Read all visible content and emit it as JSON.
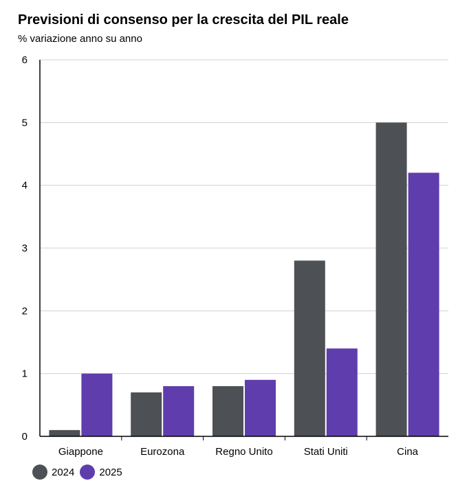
{
  "chart_data": {
    "type": "bar",
    "title": "Previsioni di consenso per la crescita del PIL reale",
    "subtitle": "% variazione anno su anno",
    "categories": [
      "Giappone",
      "Eurozona",
      "Regno Unito",
      "Stati Uniti",
      "Cina"
    ],
    "series": [
      {
        "name": "2024",
        "color": "#4d5054",
        "values": [
          0.1,
          0.7,
          0.8,
          2.8,
          5.0
        ]
      },
      {
        "name": "2025",
        "color": "#5f3dad",
        "values": [
          1.0,
          0.8,
          0.9,
          1.4,
          4.2
        ]
      }
    ],
    "ylim": [
      0,
      6
    ],
    "yticks": [
      "0",
      "1",
      "2",
      "3",
      "4",
      "5",
      "6"
    ],
    "grid": true,
    "legend": "bottom-left"
  }
}
